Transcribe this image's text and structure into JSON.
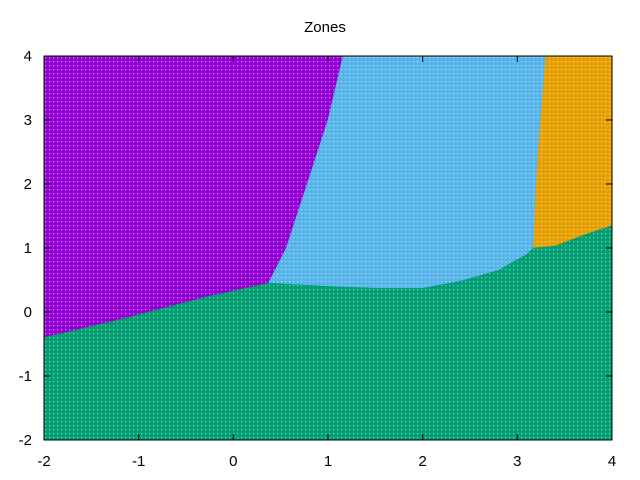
{
  "chart_data": {
    "type": "heatmap",
    "title": "Zones",
    "xlabel": "",
    "ylabel": "",
    "xlim": [
      -2,
      4
    ],
    "ylim": [
      -2,
      4
    ],
    "x_ticks": [
      "-2",
      "-1",
      "0",
      "1",
      "2",
      "3",
      "4"
    ],
    "y_ticks": [
      "-2",
      "-1",
      "0",
      "1",
      "2",
      "3",
      "4"
    ],
    "grid": false,
    "zones": [
      {
        "id": "purple",
        "color": "#9400d3",
        "polygon": [
          [
            -2,
            4
          ],
          [
            1.16,
            4
          ],
          [
            1.0,
            3.0
          ],
          [
            0.78,
            2.0
          ],
          [
            0.56,
            1.0
          ],
          [
            0.37,
            0.45
          ],
          [
            -0.3,
            0.23
          ],
          [
            -1.2,
            -0.12
          ],
          [
            -2,
            -0.4
          ]
        ]
      },
      {
        "id": "sky-blue",
        "color": "#56b4e9",
        "polygon": [
          [
            1.16,
            4
          ],
          [
            3.3,
            4
          ],
          [
            3.28,
            3.6
          ],
          [
            3.22,
            2.5
          ],
          [
            3.2,
            2.0
          ],
          [
            3.17,
            1.0
          ],
          [
            3.1,
            0.9
          ],
          [
            2.8,
            0.65
          ],
          [
            2.4,
            0.48
          ],
          [
            2.0,
            0.37
          ],
          [
            1.5,
            0.37
          ],
          [
            1.0,
            0.4
          ],
          [
            0.37,
            0.45
          ],
          [
            0.56,
            1.0
          ],
          [
            0.78,
            2.0
          ],
          [
            1.0,
            3.0
          ]
        ]
      },
      {
        "id": "orange",
        "color": "#e69f00",
        "polygon": [
          [
            3.3,
            4
          ],
          [
            4,
            4
          ],
          [
            4,
            1.35
          ],
          [
            3.7,
            1.2
          ],
          [
            3.4,
            1.03
          ],
          [
            3.17,
            1.0
          ],
          [
            3.2,
            2.0
          ],
          [
            3.22,
            2.5
          ],
          [
            3.28,
            3.6
          ]
        ]
      },
      {
        "id": "green",
        "color": "#009e73",
        "polygon": [
          [
            -2,
            -2
          ],
          [
            4,
            -2
          ],
          [
            4,
            1.35
          ],
          [
            3.7,
            1.2
          ],
          [
            3.4,
            1.03
          ],
          [
            3.17,
            1.0
          ],
          [
            3.1,
            0.9
          ],
          [
            2.8,
            0.65
          ],
          [
            2.4,
            0.48
          ],
          [
            2.0,
            0.37
          ],
          [
            1.5,
            0.37
          ],
          [
            1.0,
            0.4
          ],
          [
            0.37,
            0.45
          ],
          [
            -0.3,
            0.23
          ],
          [
            -1.2,
            -0.12
          ],
          [
            -2,
            -0.4
          ]
        ]
      }
    ]
  }
}
